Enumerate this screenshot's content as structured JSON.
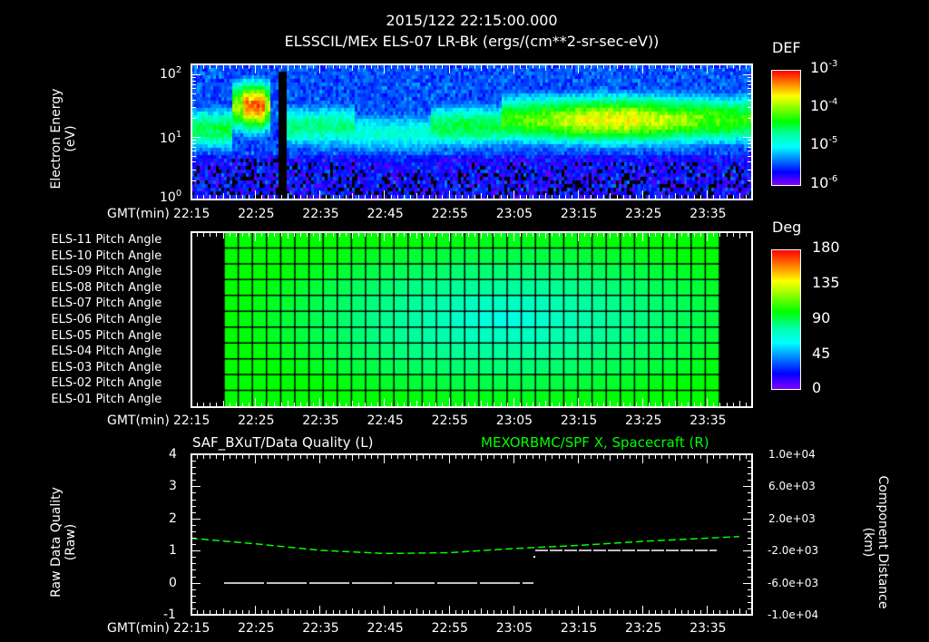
{
  "header": {
    "timestamp": "2015/122 22:15:00.000",
    "panel1_title": "ELSSCIL/MEx ELS-07 LR-Bk  (ergs/(cm**2-sr-sec-eV))"
  },
  "time_axis": {
    "label": "GMT(min)",
    "ticks": [
      "22:15",
      "22:25",
      "22:35",
      "22:45",
      "22:55",
      "23:05",
      "23:15",
      "23:25",
      "23:35"
    ]
  },
  "chart_data": [
    {
      "type": "heatmap",
      "title": "ELSSCIL/MEx ELS-07 LR-Bk  (ergs/(cm**2-sr-sec-eV))",
      "xlabel": "GMT(min)",
      "ylabel": "Electron Energy (eV)",
      "yscale": "log",
      "ylim": [
        1,
        150
      ],
      "yticks": [
        "10^0",
        "10^1",
        "10^2"
      ],
      "x": [
        "22:15",
        "22:25",
        "22:35",
        "22:45",
        "22:55",
        "23:05",
        "23:15",
        "23:25",
        "23:35"
      ],
      "colorbar": {
        "label": "DEF",
        "scale": "log",
        "ticks": [
          "10^-6",
          "10^-5",
          "10^-4",
          "10^-3"
        ],
        "range": [
          1e-06,
          0.001
        ]
      },
      "features": [
        {
          "time_range": [
            "22:15",
            "22:21"
          ],
          "energy_peak_eV": 20,
          "level": "green"
        },
        {
          "time_range": [
            "22:23",
            "22:27"
          ],
          "energy_peak_eV": 40,
          "level": "orange-red"
        },
        {
          "time_range": [
            "22:28",
            "22:29"
          ],
          "energy_peak_eV": null,
          "level": "black-gap"
        },
        {
          "time_range": [
            "22:30",
            "22:55"
          ],
          "energy_peak_eV": 20,
          "level": "cyan"
        },
        {
          "time_range": [
            "23:00",
            "23:40"
          ],
          "energy_peak_eV": 25,
          "level": "yellow-orange"
        }
      ]
    },
    {
      "type": "heatmap",
      "title": "Pitch Angle",
      "xlabel": "GMT(min)",
      "categories": [
        "ELS-11 Pitch Angle",
        "ELS-10 Pitch Angle",
        "ELS-09 Pitch Angle",
        "ELS-08 Pitch Angle",
        "ELS-07 Pitch Angle",
        "ELS-06 Pitch Angle",
        "ELS-05 Pitch Angle",
        "ELS-04 Pitch Angle",
        "ELS-03 Pitch Angle",
        "ELS-02 Pitch Angle",
        "ELS-01 Pitch Angle"
      ],
      "colorbar": {
        "label": "Deg",
        "ticks": [
          "0",
          "45",
          "90",
          "135",
          "180"
        ],
        "range": [
          0,
          180
        ]
      },
      "data_time_range": [
        "22:20",
        "23:36"
      ],
      "values_deg_approx": {
        "edge_rows": 100,
        "center_rows": 75
      }
    },
    {
      "type": "line",
      "title_left": "SAF_BXuT/Data Quality (L)",
      "title_right": "MEXORBMC/SPF X, Spacecraft (R)",
      "xlabel": "GMT(min)",
      "ylabel_left": "Raw Data Quality (Raw)",
      "ylabel_right": "Component Distance (km)",
      "ylim_left": [
        -1,
        4
      ],
      "yticks_left": [
        "-1",
        "0",
        "1",
        "2",
        "3",
        "4"
      ],
      "ylim_right": [
        -10000,
        10000
      ],
      "yticks_right": [
        "1.0e+04",
        "6.0e+03",
        "2.0e+03",
        "-2.0e+03",
        "-6.0e+03",
        "-1.0e+04"
      ],
      "series": [
        {
          "name": "SAF_BXuT/Data Quality",
          "axis": "left",
          "color": "#ffffff",
          "x": [
            "22:20",
            "23:05",
            "23:06",
            "23:36"
          ],
          "values": [
            0,
            0,
            1,
            1
          ]
        },
        {
          "name": "MEXORBMC/SPF X, Spacecraft",
          "axis": "right",
          "color": "#00ff00",
          "x": [
            "22:15",
            "22:25",
            "22:35",
            "22:45",
            "22:55",
            "23:05",
            "23:15",
            "23:25",
            "23:35",
            "23:40"
          ],
          "values": [
            -500,
            -1200,
            -2000,
            -2400,
            -2300,
            -1800,
            -1400,
            -900,
            -500,
            -300
          ]
        }
      ]
    }
  ],
  "panel1": {
    "ylabel_line1": "Electron Energy",
    "ylabel_line2": "(eV)",
    "yticks": [
      {
        "base": "10",
        "exp": "2"
      },
      {
        "base": "10",
        "exp": "1"
      },
      {
        "base": "10",
        "exp": "0"
      }
    ],
    "cbar_label": "DEF",
    "cbar_ticks": [
      {
        "base": "10",
        "exp": "-3"
      },
      {
        "base": "10",
        "exp": "-4"
      },
      {
        "base": "10",
        "exp": "-5"
      },
      {
        "base": "10",
        "exp": "-6"
      }
    ]
  },
  "panel2": {
    "rows": [
      "ELS-11 Pitch Angle",
      "ELS-10 Pitch Angle",
      "ELS-09 Pitch Angle",
      "ELS-08 Pitch Angle",
      "ELS-07 Pitch Angle",
      "ELS-06 Pitch Angle",
      "ELS-05 Pitch Angle",
      "ELS-04 Pitch Angle",
      "ELS-03 Pitch Angle",
      "ELS-02 Pitch Angle",
      "ELS-01 Pitch Angle"
    ],
    "cbar_label": "Deg",
    "cbar_ticks": [
      "180",
      "135",
      "90",
      "45",
      "0"
    ]
  },
  "panel3": {
    "title_left": "SAF_BXuT/Data Quality (L)",
    "title_right": "MEXORBMC/SPF X, Spacecraft (R)",
    "title_right_color": "#00ff00",
    "ylabel_left_line1": "Raw Data Quality",
    "ylabel_left_line2": "(Raw)",
    "ylabel_right_line1": "Component Distance",
    "ylabel_right_line2": "(km)",
    "yticks_left": [
      "4",
      "3",
      "2",
      "1",
      "0",
      "-1"
    ],
    "yticks_right": [
      "1.0e+04",
      "6.0e+03",
      "2.0e+03",
      "-2.0e+03",
      "-6.0e+03",
      "-1.0e+04"
    ]
  }
}
